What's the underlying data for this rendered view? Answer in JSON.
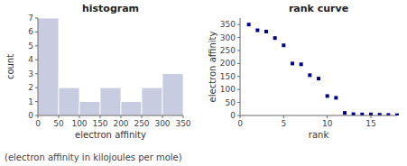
{
  "chart_data": [
    {
      "type": "histogram",
      "title": "histogram",
      "xlabel": "electron affinity",
      "ylabel": "count",
      "bins": [
        0,
        50,
        100,
        150,
        200,
        250,
        300,
        350
      ],
      "values": [
        7,
        2,
        1,
        2,
        1,
        2,
        3
      ],
      "color": "#c8cce0",
      "xlim": [
        0,
        350
      ],
      "ylim": [
        0,
        7
      ],
      "xticks": [
        0,
        50,
        100,
        150,
        200,
        250,
        300,
        350
      ],
      "yticks": [
        0,
        1,
        2,
        3,
        4,
        5,
        6,
        7
      ]
    },
    {
      "type": "scatter",
      "title": "rank curve",
      "xlabel": "rank",
      "ylabel": "electron affinity",
      "x": [
        1,
        2,
        3,
        4,
        5,
        6,
        7,
        8,
        9,
        10,
        11,
        12,
        13,
        14,
        15,
        16,
        17,
        18
      ],
      "values": [
        350,
        328,
        323,
        298,
        270,
        200,
        197,
        155,
        142,
        75,
        68,
        10,
        5,
        4,
        4,
        3,
        2,
        1
      ],
      "color": "#00008b",
      "marker": "square",
      "xlim": [
        0,
        18
      ],
      "ylim": [
        0,
        375
      ],
      "xticks": [
        0,
        5,
        10,
        15
      ],
      "yticks": [
        0,
        50,
        100,
        150,
        200,
        250,
        300,
        350
      ]
    }
  ],
  "caption": "(electron affinity in kilojoules per mole)"
}
